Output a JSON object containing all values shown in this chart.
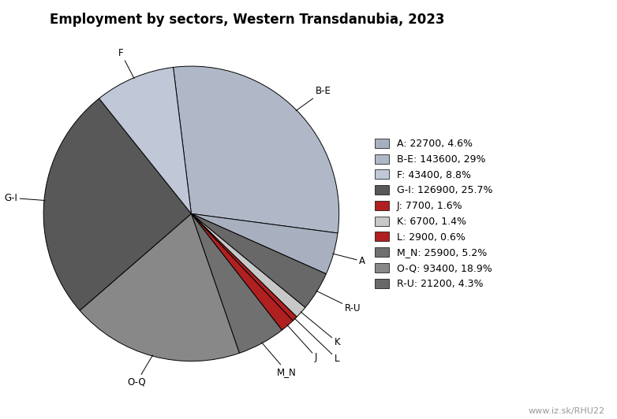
{
  "title": "Employment by sectors, Western Transdanubia, 2023",
  "sectors": [
    "B-E",
    "A",
    "R-U",
    "K",
    "L",
    "J",
    "M_N",
    "O-Q",
    "G-I",
    "F"
  ],
  "values": [
    143600,
    22700,
    21200,
    6700,
    2900,
    7700,
    25900,
    93400,
    126900,
    43400
  ],
  "colors": [
    "#b0b8c8",
    "#a8b0c0",
    "#686868",
    "#c8c8c8",
    "#b02020",
    "#b02020",
    "#707070",
    "#888888",
    "#585858",
    "#c0c8d8"
  ],
  "legend_sectors": [
    "A",
    "B-E",
    "F",
    "G-I",
    "J",
    "K",
    "L",
    "M_N",
    "O-Q",
    "R-U"
  ],
  "legend_colors": [
    "#a8b0c0",
    "#b0b8c8",
    "#c0c8d8",
    "#585858",
    "#b02020",
    "#c8c8c8",
    "#b02020",
    "#707070",
    "#888888",
    "#686868"
  ],
  "legend_labels": [
    "A: 22700, 4.6%",
    "B-E: 143600, 29%",
    "F: 43400, 8.8%",
    "G-I: 126900, 25.7%",
    "J: 7700, 1.6%",
    "K: 6700, 1.4%",
    "L: 2900, 0.6%",
    "M_N: 25900, 5.2%",
    "O-Q: 93400, 18.9%",
    "R-U: 21200, 4.3%"
  ],
  "watermark": "www.iz.sk/RHU22",
  "startangle": 97
}
